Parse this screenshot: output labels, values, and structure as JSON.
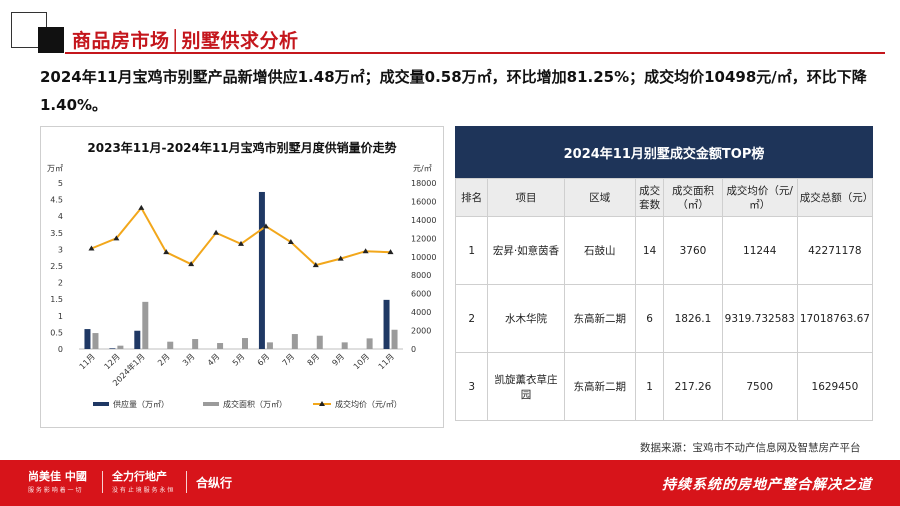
{
  "header": {
    "title": "商品房市场│别墅供求分析"
  },
  "summary": "2024年11月宝鸡市别墅产品新增供应1.48万㎡；成交量0.58万㎡，环比增加81.25%；成交均价10498元/㎡，环比下降1.40%。",
  "chart_data": {
    "type": "bar",
    "title": "2023年11月-2024年11月宝鸡市别墅月度供销量价走势",
    "categories": [
      "11月",
      "12月",
      "2024年1月",
      "2月",
      "3月",
      "4月",
      "5月",
      "6月",
      "7月",
      "8月",
      "9月",
      "10月",
      "11月"
    ],
    "y_left_unit": "万㎡",
    "y_right_unit": "元/㎡",
    "y_left_ticks": [
      "0",
      "0.5",
      "1",
      "1.5",
      "2",
      "2.5",
      "3",
      "3.5",
      "4",
      "4.5",
      "5"
    ],
    "y_right_ticks": [
      "0",
      "2000",
      "4000",
      "6000",
      "8000",
      "10000",
      "12000",
      "14000",
      "16000",
      "18000"
    ],
    "ylim_left": [
      0,
      5
    ],
    "ylim_right": [
      0,
      18000
    ],
    "series": [
      {
        "name": "供应量（万㎡）",
        "type": "bar",
        "axis": "left",
        "color": "#1f3864",
        "values": [
          0.6,
          0.02,
          0.55,
          0.0,
          0.0,
          0.0,
          0.0,
          4.73,
          0.0,
          0.0,
          0.0,
          0.0,
          1.48
        ]
      },
      {
        "name": "成交面积（万㎡）",
        "type": "bar",
        "axis": "left",
        "color": "#9b9b9b",
        "values": [
          0.48,
          0.1,
          1.42,
          0.22,
          0.3,
          0.18,
          0.33,
          0.2,
          0.45,
          0.4,
          0.2,
          0.32,
          0.58
        ]
      },
      {
        "name": "成交均价（元/㎡）",
        "type": "line",
        "axis": "right",
        "color": "#f2a71b",
        "values": [
          10900,
          12000,
          15300,
          10500,
          9200,
          12600,
          11400,
          13300,
          11600,
          9100,
          9800,
          10600,
          10498
        ]
      }
    ],
    "legend_position": "bottom",
    "grid": false
  },
  "table": {
    "title": "2024年11月别墅成交金额TOP榜",
    "headers": [
      "排名",
      "项目",
      "区域",
      "成交套数",
      "成交面积（㎡）",
      "成交均价（元/㎡）",
      "成交总额（元）"
    ],
    "rows": [
      [
        "1",
        "宏昇·如意茵香",
        "石鼓山",
        "14",
        "3760",
        "11244",
        "42271178"
      ],
      [
        "2",
        "水木华院",
        "东高新二期",
        "6",
        "1826.1",
        "9319.732583",
        "17018763.67"
      ],
      [
        "3",
        "凯旋薰衣草庄园",
        "东高新二期",
        "1",
        "217.26",
        "7500",
        "1629450"
      ]
    ]
  },
  "source": "数据来源：宝鸡市不动产信息网及智慧房产平台",
  "footer": {
    "brand1": "尚美佳 中國",
    "brand1_sub": "服 务 影 响 着 一 切",
    "brand2": "全力行地产",
    "brand2_sub": "没 有 止 境 服 务 永 恒",
    "brand3": "合纵行",
    "slogan": "持续系统的房地产整合解决之道"
  }
}
